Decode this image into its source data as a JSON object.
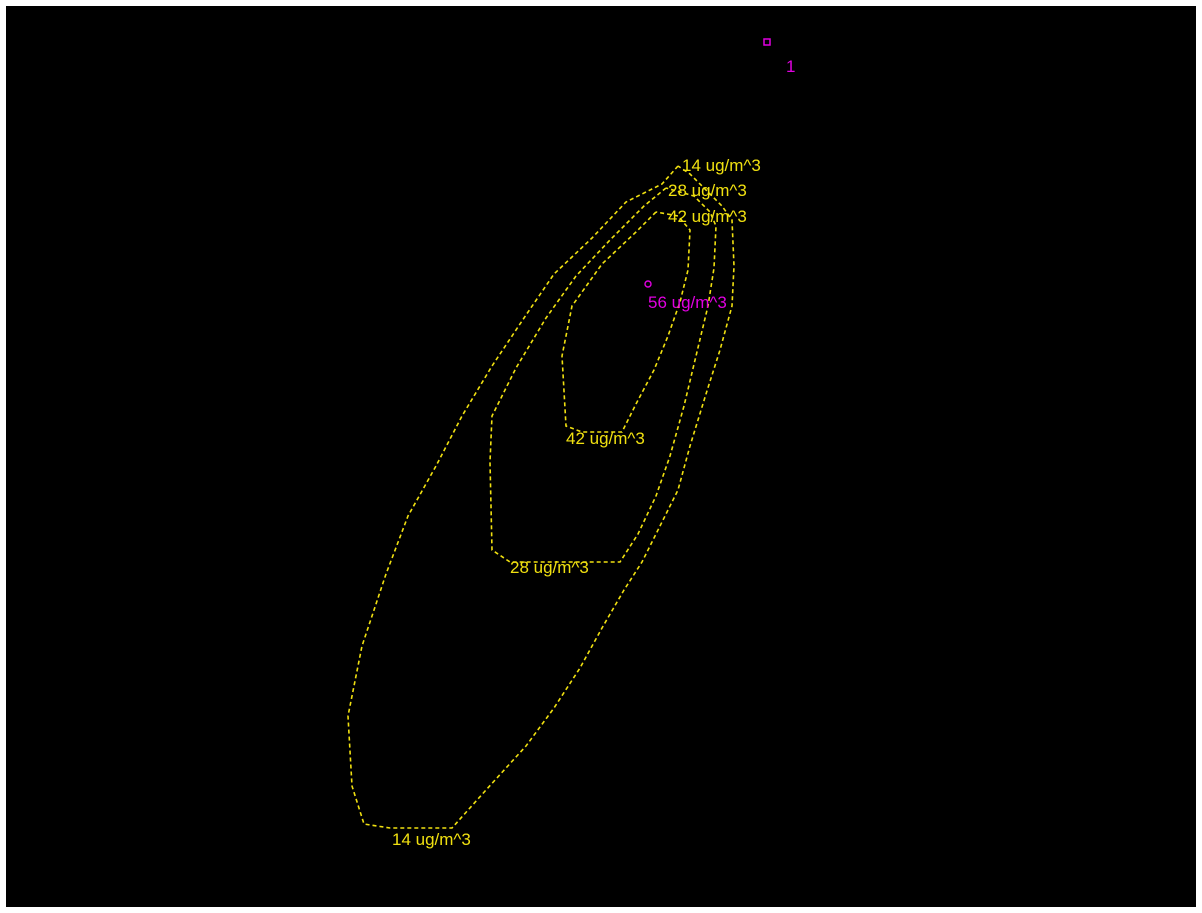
{
  "colors": {
    "background": "#000000",
    "contour": "#f0e010",
    "source": "#e000e0",
    "peak": "#e000e0"
  },
  "source": {
    "label": "1"
  },
  "peak": {
    "label": "56 ug/m^3"
  },
  "contours": [
    {
      "level": 14,
      "labels": [
        "14 ug/m^3",
        "14 ug/m^3"
      ]
    },
    {
      "level": 28,
      "labels": [
        "28 ug/m^3",
        "28 ug/m^3"
      ]
    },
    {
      "level": 42,
      "labels": [
        "42 ug/m^3",
        "42 ug/m^3"
      ]
    }
  ]
}
